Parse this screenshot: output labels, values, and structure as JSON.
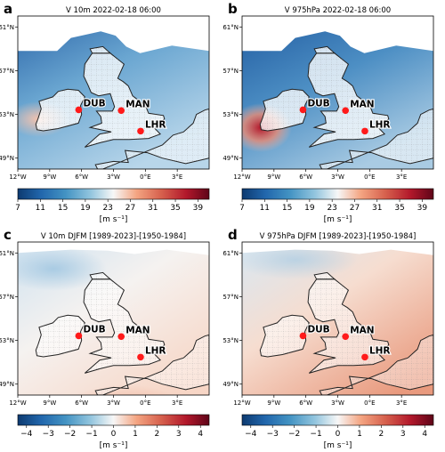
{
  "panels": [
    {
      "letter": "a",
      "title": "V 10m 2022-02-18 06:00",
      "scale": "speed",
      "units": "[m s⁻¹]"
    },
    {
      "letter": "b",
      "title": "V 975hPa 2022-02-18 06:00",
      "scale": "speed",
      "units": "[m s⁻¹]"
    },
    {
      "letter": "c",
      "title": "V 10m DJFM [1989-2023]-[1950-1984]",
      "scale": "diff",
      "units": "[m s⁻¹]"
    },
    {
      "letter": "d",
      "title": "V 975hPa DJFM [1989-2023]-[1950-1984]",
      "scale": "diff",
      "units": "[m s⁻¹]"
    }
  ],
  "lat_ticks": [
    "61°N",
    "57°N",
    "53°N",
    "49°N"
  ],
  "lon_ticks": [
    "12°W",
    "9°W",
    "6°W",
    "3°W",
    "0°E",
    "3°E"
  ],
  "colorbars": {
    "speed": {
      "ticks": [
        "7",
        "11",
        "15",
        "19",
        "23",
        "27",
        "31",
        "35",
        "39"
      ],
      "cmap": "RdBu_r",
      "min": 7,
      "max": 41
    },
    "diff": {
      "ticks": [
        "−4",
        "−3",
        "−2",
        "−1",
        "0",
        "1",
        "2",
        "3",
        "4"
      ],
      "cmap": "RdBu_r",
      "min": -4.4,
      "max": 4.4
    }
  },
  "airports": [
    {
      "code": "DUB",
      "lon": -6.27,
      "lat": 53.42
    },
    {
      "code": "MAN",
      "lon": -2.27,
      "lat": 53.35
    },
    {
      "code": "LHR",
      "lon": -0.45,
      "lat": 51.47
    }
  ],
  "colors": {
    "marker": "#ff1a1a",
    "blue_dark": "#2a5a9c",
    "red_dark": "#a8141e",
    "neutral": "#f7f7f7"
  }
}
